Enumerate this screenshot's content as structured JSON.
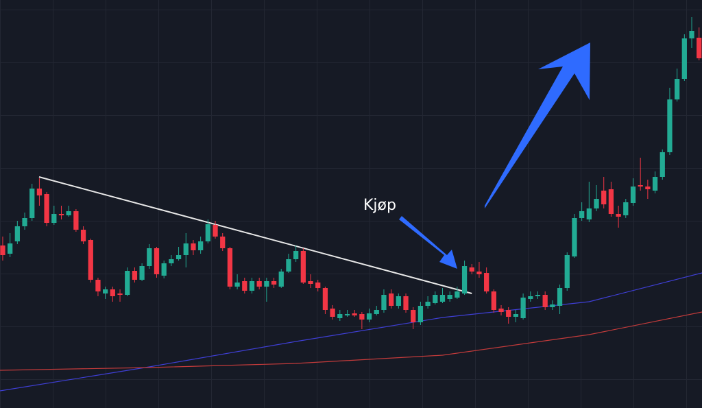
{
  "chart_data": {
    "type": "candlestick",
    "annotation": "Kjøp",
    "xlim": [
      -0.37,
      95.4
    ],
    "ylim": [
      0,
      595
    ],
    "up_color": "#22ab94",
    "down_color": "#f23645",
    "x": [
      0,
      1,
      2,
      3,
      4,
      5,
      6,
      7,
      8,
      9,
      10,
      11,
      12,
      13,
      14,
      15,
      16,
      17,
      18,
      19,
      20,
      21,
      22,
      23,
      24,
      25,
      26,
      27,
      28,
      29,
      30,
      31,
      32,
      33,
      34,
      35,
      36,
      37,
      38,
      39,
      40,
      41,
      42,
      43,
      44,
      45,
      46,
      47,
      48,
      49,
      50,
      51,
      52,
      53,
      54,
      55,
      56,
      57,
      58,
      59,
      60,
      61,
      62,
      63,
      64,
      65,
      66,
      67,
      68,
      69,
      70,
      71,
      72,
      73,
      74,
      75,
      76,
      77,
      78,
      79,
      80,
      81,
      82,
      83,
      84,
      85,
      86,
      87,
      88,
      89,
      90,
      91,
      92,
      93,
      94,
      95
    ],
    "open": [
      237,
      225,
      243,
      265,
      277,
      320,
      312,
      270,
      283,
      281,
      287,
      260,
      245,
      187,
      167,
      173,
      167,
      165,
      200,
      187,
      207,
      233,
      193,
      211,
      217,
      223,
      240,
      230,
      243,
      267,
      250,
      233,
      177,
      185,
      171,
      185,
      177,
      185,
      177,
      199,
      217,
      229,
      185,
      183,
      175,
      145,
      131,
      135,
      138,
      137,
      129,
      137,
      143,
      167,
      149,
      163,
      143,
      125,
      149,
      153,
      155,
      159,
      161,
      167,
      205,
      199,
      197,
      170,
      145,
      143,
      133,
      131,
      159,
      163,
      165,
      147,
      149,
      175,
      221,
      277,
      275,
      291,
      317,
      319,
      283,
      281,
      299,
      325,
      323,
      317,
      337,
      373,
      450,
      480,
      539,
      540
    ],
    "high": [
      250,
      255,
      273,
      285,
      327,
      335,
      315,
      295,
      295,
      295,
      290,
      265,
      247,
      190,
      177,
      177,
      173,
      205,
      205,
      211,
      239,
      235,
      215,
      223,
      235,
      255,
      245,
      250,
      275,
      273,
      255,
      235,
      195,
      190,
      190,
      190,
      190,
      190,
      203,
      225,
      237,
      233,
      195,
      187,
      177,
      150,
      143,
      143,
      143,
      140,
      145,
      149,
      173,
      173,
      167,
      167,
      147,
      155,
      163,
      170,
      175,
      170,
      177,
      215,
      210,
      213,
      205,
      173,
      150,
      147,
      143,
      167,
      170,
      170,
      170,
      157,
      180,
      227,
      283,
      300,
      330,
      325,
      337,
      330,
      295,
      305,
      335,
      365,
      333,
      345,
      377,
      467,
      495,
      545,
      570,
      555
    ],
    "low": [
      215,
      220,
      239,
      260,
      273,
      295,
      265,
      267,
      275,
      279,
      257,
      239,
      183,
      163,
      159,
      155,
      155,
      163,
      183,
      185,
      203,
      190,
      189,
      207,
      215,
      205,
      223,
      225,
      240,
      247,
      229,
      173,
      173,
      167,
      167,
      173,
      155,
      175,
      175,
      197,
      213,
      181,
      175,
      170,
      137,
      129,
      127,
      133,
      133,
      115,
      125,
      135,
      139,
      145,
      145,
      139,
      115,
      121,
      145,
      151,
      153,
      155,
      159,
      165,
      195,
      190,
      167,
      139,
      135,
      123,
      125,
      129,
      155,
      159,
      143,
      143,
      137,
      171,
      219,
      273,
      271,
      287,
      291,
      279,
      263,
      277,
      295,
      317,
      305,
      313,
      333,
      369,
      447,
      477,
      525,
      507
    ],
    "close": [
      223,
      240,
      265,
      277,
      320,
      310,
      270,
      283,
      281,
      287,
      260,
      243,
      187,
      170,
      173,
      163,
      165,
      200,
      187,
      207,
      233,
      195,
      211,
      217,
      223,
      240,
      230,
      243,
      268,
      250,
      233,
      177,
      183,
      171,
      185,
      177,
      185,
      180,
      199,
      217,
      229,
      183,
      181,
      175,
      143,
      133,
      137,
      137,
      135,
      129,
      138,
      143,
      165,
      149,
      163,
      143,
      125,
      149,
      155,
      165,
      165,
      165,
      170,
      207,
      199,
      195,
      170,
      143,
      140,
      133,
      137,
      161,
      163,
      165,
      147,
      151,
      175,
      223,
      277,
      287,
      291,
      305,
      297,
      283,
      279,
      300,
      323,
      323,
      319,
      337,
      373,
      450,
      480,
      539,
      550,
      510
    ],
    "trendline": {
      "color": "#e8e8e8",
      "x": [
        4.96,
        64
      ],
      "values": [
        337,
        167
      ]
    },
    "series": [
      {
        "color": "#3f3fd6",
        "x": [
          -0.37,
          20,
          40,
          60,
          80,
          95.4
        ],
        "values": [
          25,
          60,
          97,
          132,
          155,
          197
        ]
      },
      {
        "color": "#c43b3b",
        "x": [
          -0.37,
          20,
          40,
          60,
          80,
          95.4
        ],
        "values": [
          55,
          59,
          65,
          77,
          107,
          140
        ]
      }
    ]
  }
}
